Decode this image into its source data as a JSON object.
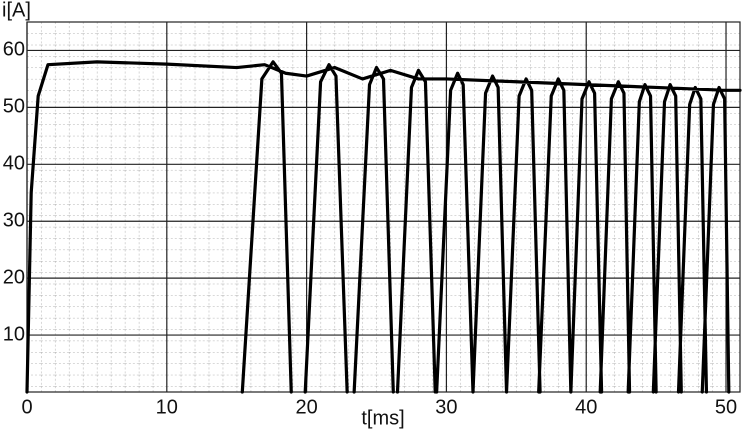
{
  "chart_data": {
    "type": "line",
    "xlabel": "t[ms]",
    "ylabel": "i[A]",
    "x": [
      0,
      0.3,
      0.8,
      1.5,
      5,
      10,
      15,
      17,
      18.5,
      20,
      22,
      24,
      26,
      28,
      30,
      35,
      40,
      45,
      50,
      51,
      null,
      15.4,
      16.8,
      17.6,
      18.2,
      18.9,
      null,
      19.9,
      21.0,
      21.6,
      22.1,
      22.9,
      null,
      23.4,
      24.5,
      25.0,
      25.5,
      26.2,
      null,
      26.5,
      27.5,
      28.0,
      28.5,
      29.2,
      null,
      29.3,
      30.3,
      30.8,
      31.2,
      31.9,
      null,
      31.9,
      32.8,
      33.3,
      33.7,
      34.3,
      null,
      34.3,
      35.2,
      35.7,
      36.1,
      36.7,
      null,
      36.6,
      37.5,
      38.0,
      38.4,
      38.9,
      null,
      38.9,
      39.7,
      40.2,
      40.6,
      41.1,
      null,
      41.0,
      41.8,
      42.3,
      42.7,
      43.1,
      null,
      43.0,
      43.8,
      44.2,
      44.6,
      45.0,
      null,
      44.8,
      45.6,
      46.0,
      46.4,
      46.8,
      null,
      46.6,
      47.4,
      47.8,
      48.2,
      48.6,
      null,
      48.3,
      49.1,
      49.5,
      49.9,
      50.2
    ],
    "values": [
      0,
      35,
      52,
      57.5,
      58,
      57.6,
      57,
      57.5,
      56,
      55.5,
      57,
      55,
      56.5,
      55,
      55,
      54.5,
      54,
      53.5,
      53,
      53,
      null,
      0,
      55,
      58,
      56,
      0,
      null,
      0,
      54.5,
      57.5,
      55.5,
      0,
      null,
      0,
      54,
      57,
      55,
      0,
      null,
      0,
      53.5,
      56.5,
      54.5,
      0,
      null,
      0,
      53,
      56,
      54,
      0,
      null,
      0,
      52.5,
      55.5,
      53.5,
      0,
      null,
      0,
      52,
      55,
      53,
      0,
      null,
      0,
      52,
      55,
      53,
      0,
      null,
      0,
      51.5,
      54.5,
      52.5,
      0,
      null,
      0,
      51.5,
      54.5,
      52.5,
      0,
      null,
      0,
      51,
      54,
      52,
      0,
      null,
      0,
      51,
      54,
      52,
      0,
      null,
      0,
      50.5,
      53.5,
      51.5,
      0,
      null,
      0,
      50.5,
      53.5,
      51.5,
      0
    ],
    "color": "#000000",
    "xlim": [
      0,
      51
    ],
    "ylim": [
      0,
      65
    ],
    "xticks": [
      0,
      10,
      20,
      30,
      40,
      50
    ],
    "yticks": [
      10,
      20,
      30,
      40,
      50,
      60
    ],
    "grid": true
  }
}
